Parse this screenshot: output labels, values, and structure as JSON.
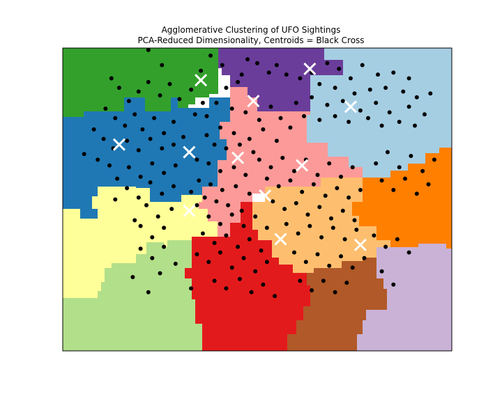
{
  "chart_data": {
    "type": "scatter",
    "title": "Agglomerative Clustering of UFO Sightings",
    "subtitle": "PCA-Reduced Dimensionality, Centroids = Black Cross",
    "xlabel": "",
    "ylabel": "",
    "axis_ticks": "none",
    "xlim": [
      0,
      10
    ],
    "ylim": [
      0,
      8
    ],
    "grid": false,
    "legend": "none",
    "region_colors": {
      "green": "#33a02c",
      "purple": "#6a3d9a",
      "light_blue": "#a6cee3",
      "blue": "#1f78b4",
      "pink": "#fb9a99",
      "orange": "#ff7f00",
      "yellow": "#ffff99",
      "light_orange": "#fdbf6f",
      "light_green": "#b2df8a",
      "red": "#e31a1c",
      "brown": "#b15928",
      "lavender": "#cab2d6"
    },
    "point_color": "#000000",
    "centroid_color": "#ffffff",
    "centroids": [
      {
        "x": 3.55,
        "y": 7.15
      },
      {
        "x": 6.35,
        "y": 7.45
      },
      {
        "x": 4.9,
        "y": 6.6
      },
      {
        "x": 7.4,
        "y": 6.45
      },
      {
        "x": 1.45,
        "y": 5.45
      },
      {
        "x": 3.25,
        "y": 5.25
      },
      {
        "x": 4.5,
        "y": 5.1
      },
      {
        "x": 6.15,
        "y": 4.9
      },
      {
        "x": 5.2,
        "y": 4.1
      },
      {
        "x": 3.25,
        "y": 3.7
      },
      {
        "x": 5.6,
        "y": 2.95
      },
      {
        "x": 7.65,
        "y": 2.8
      }
    ],
    "points": [
      [
        2.2,
        7.95
      ],
      [
        2.55,
        7.55
      ],
      [
        3.55,
        7.4
      ],
      [
        3.8,
        7.8
      ],
      [
        4.1,
        7.55
      ],
      [
        4.6,
        7.3
      ],
      [
        4.75,
        7.7
      ],
      [
        5.0,
        7.6
      ],
      [
        5.3,
        7.35
      ],
      [
        5.5,
        7.55
      ],
      [
        5.75,
        7.3
      ],
      [
        6.1,
        7.2
      ],
      [
        6.4,
        7.35
      ],
      [
        6.8,
        7.6
      ],
      [
        7.1,
        7.45
      ],
      [
        7.4,
        7.2
      ],
      [
        7.7,
        7.55
      ],
      [
        8.1,
        7.3
      ],
      [
        8.5,
        7.35
      ],
      [
        8.9,
        7.2
      ],
      [
        6.6,
        7.05
      ],
      [
        7.0,
        6.95
      ],
      [
        7.5,
        6.8
      ],
      [
        7.9,
        6.9
      ],
      [
        8.3,
        6.95
      ],
      [
        8.75,
        6.85
      ],
      [
        9.1,
        6.7
      ],
      [
        9.45,
        6.8
      ],
      [
        6.0,
        6.55
      ],
      [
        6.4,
        6.7
      ],
      [
        6.8,
        6.5
      ],
      [
        7.2,
        6.6
      ],
      [
        7.65,
        6.35
      ],
      [
        8.05,
        6.55
      ],
      [
        8.4,
        6.3
      ],
      [
        8.9,
        6.45
      ],
      [
        9.3,
        6.25
      ],
      [
        6.2,
        6.2
      ],
      [
        6.6,
        6.1
      ],
      [
        7.0,
        6.2
      ],
      [
        7.35,
        6.05
      ],
      [
        7.85,
        6.15
      ],
      [
        8.2,
        5.95
      ],
      [
        8.65,
        6.05
      ],
      [
        9.05,
        5.95
      ],
      [
        1.25,
        7.2
      ],
      [
        1.45,
        6.95
      ],
      [
        1.7,
        6.6
      ],
      [
        1.95,
        6.85
      ],
      [
        2.2,
        7.1
      ],
      [
        2.5,
        6.75
      ],
      [
        2.75,
        7.05
      ],
      [
        3.0,
        6.65
      ],
      [
        3.3,
        6.9
      ],
      [
        3.6,
        6.55
      ],
      [
        1.1,
        6.4
      ],
      [
        1.35,
        6.15
      ],
      [
        1.6,
        5.95
      ],
      [
        1.85,
        6.25
      ],
      [
        2.05,
        5.85
      ],
      [
        2.35,
        6.15
      ],
      [
        2.6,
        5.75
      ],
      [
        2.85,
        6.05
      ],
      [
        3.1,
        5.65
      ],
      [
        3.4,
        6.25
      ],
      [
        0.8,
        5.85
      ],
      [
        1.05,
        5.6
      ],
      [
        1.3,
        5.35
      ],
      [
        1.65,
        5.55
      ],
      [
        1.95,
        5.3
      ],
      [
        2.25,
        5.6
      ],
      [
        2.55,
        5.35
      ],
      [
        2.85,
        5.45
      ],
      [
        0.55,
        5.2
      ],
      [
        0.9,
        5.05
      ],
      [
        3.7,
        6.2
      ],
      [
        3.95,
        6.55
      ],
      [
        4.2,
        6.95
      ],
      [
        4.5,
        7.1
      ],
      [
        4.35,
        6.4
      ],
      [
        4.7,
        6.3
      ],
      [
        5.05,
        6.1
      ],
      [
        5.35,
        6.45
      ],
      [
        5.6,
        6.15
      ],
      [
        5.85,
        5.9
      ],
      [
        4.05,
        5.9
      ],
      [
        4.4,
        5.75
      ],
      [
        4.8,
        5.6
      ],
      [
        5.15,
        5.85
      ],
      [
        5.5,
        5.55
      ],
      [
        3.7,
        5.7
      ],
      [
        3.9,
        5.45
      ],
      [
        4.2,
        5.35
      ],
      [
        4.55,
        5.45
      ],
      [
        4.9,
        5.25
      ],
      [
        3.45,
        5.05
      ],
      [
        3.75,
        4.95
      ],
      [
        4.05,
        4.75
      ],
      [
        4.4,
        4.85
      ],
      [
        4.7,
        4.65
      ],
      [
        3.5,
        4.5
      ],
      [
        3.8,
        4.4
      ],
      [
        4.1,
        4.25
      ],
      [
        4.45,
        4.35
      ],
      [
        4.8,
        4.15
      ],
      [
        3.3,
        4.2
      ],
      [
        3.65,
        4.05
      ],
      [
        3.95,
        3.95
      ],
      [
        4.25,
        3.85
      ],
      [
        4.6,
        3.7
      ],
      [
        2.9,
        4.9
      ],
      [
        2.6,
        4.7
      ],
      [
        2.3,
        4.95
      ],
      [
        2.0,
        4.6
      ],
      [
        1.7,
        4.85
      ],
      [
        1.4,
        4.55
      ],
      [
        1.2,
        4.9
      ],
      [
        2.85,
        4.35
      ],
      [
        2.55,
        4.15
      ],
      [
        2.25,
        4.45
      ],
      [
        1.95,
        4.05
      ],
      [
        1.65,
        4.3
      ],
      [
        1.35,
        4.0
      ],
      [
        2.8,
        3.75
      ],
      [
        2.45,
        3.55
      ],
      [
        2.15,
        3.85
      ],
      [
        1.85,
        3.45
      ],
      [
        2.6,
        3.25
      ],
      [
        2.3,
        3.0
      ],
      [
        2.0,
        3.3
      ],
      [
        5.05,
        5.05
      ],
      [
        5.35,
        4.85
      ],
      [
        5.65,
        5.1
      ],
      [
        5.95,
        4.75
      ],
      [
        6.25,
        5.05
      ],
      [
        6.55,
        4.65
      ],
      [
        6.85,
        4.95
      ],
      [
        7.15,
        4.6
      ],
      [
        7.45,
        4.85
      ],
      [
        5.25,
        4.55
      ],
      [
        5.55,
        4.35
      ],
      [
        5.85,
        4.5
      ],
      [
        6.15,
        4.2
      ],
      [
        6.45,
        4.4
      ],
      [
        6.75,
        4.1
      ],
      [
        7.05,
        4.3
      ],
      [
        7.35,
        4.05
      ],
      [
        7.65,
        4.25
      ],
      [
        5.4,
        3.95
      ],
      [
        5.7,
        3.75
      ],
      [
        6.0,
        3.9
      ],
      [
        6.3,
        3.6
      ],
      [
        6.6,
        3.8
      ],
      [
        6.9,
        3.5
      ],
      [
        7.2,
        3.7
      ],
      [
        7.5,
        3.45
      ],
      [
        8.05,
        4.95
      ],
      [
        8.35,
        5.25
      ],
      [
        8.65,
        4.85
      ],
      [
        8.95,
        5.15
      ],
      [
        9.25,
        4.75
      ],
      [
        9.55,
        5.05
      ],
      [
        8.2,
        4.5
      ],
      [
        8.5,
        4.25
      ],
      [
        8.8,
        4.55
      ],
      [
        9.1,
        4.15
      ],
      [
        9.4,
        4.4
      ],
      [
        3.45,
        3.85
      ],
      [
        3.75,
        3.55
      ],
      [
        4.05,
        3.35
      ],
      [
        4.35,
        3.6
      ],
      [
        4.65,
        3.3
      ],
      [
        4.95,
        3.55
      ],
      [
        5.25,
        3.25
      ],
      [
        3.6,
        3.1
      ],
      [
        3.9,
        2.85
      ],
      [
        4.2,
        3.05
      ],
      [
        4.5,
        2.75
      ],
      [
        4.8,
        2.95
      ],
      [
        5.1,
        2.65
      ],
      [
        3.45,
        2.55
      ],
      [
        3.75,
        2.35
      ],
      [
        4.05,
        2.6
      ],
      [
        4.35,
        2.2
      ],
      [
        4.65,
        2.45
      ],
      [
        4.95,
        2.1
      ],
      [
        5.25,
        2.35
      ],
      [
        3.9,
        1.85
      ],
      [
        4.2,
        1.65
      ],
      [
        4.55,
        1.9
      ],
      [
        4.85,
        1.55
      ],
      [
        5.15,
        1.75
      ],
      [
        5.45,
        1.45
      ],
      [
        3.3,
        1.65
      ],
      [
        5.75,
        3.35
      ],
      [
        6.05,
        3.1
      ],
      [
        6.35,
        3.3
      ],
      [
        6.65,
        3.0
      ],
      [
        6.95,
        3.25
      ],
      [
        7.25,
        2.95
      ],
      [
        7.55,
        3.2
      ],
      [
        5.95,
        2.6
      ],
      [
        6.25,
        2.35
      ],
      [
        6.55,
        2.55
      ],
      [
        6.85,
        2.25
      ],
      [
        7.15,
        2.5
      ],
      [
        7.45,
        2.2
      ],
      [
        7.75,
        2.45
      ],
      [
        6.1,
        1.85
      ],
      [
        6.4,
        1.6
      ],
      [
        6.7,
        1.85
      ],
      [
        7.0,
        1.55
      ],
      [
        7.3,
        1.8
      ],
      [
        8.0,
        3.05
      ],
      [
        8.3,
        2.75
      ],
      [
        8.6,
        2.95
      ],
      [
        8.9,
        2.6
      ],
      [
        8.2,
        2.1
      ],
      [
        8.5,
        1.75
      ],
      [
        2.0,
        2.7
      ],
      [
        2.3,
        2.45
      ],
      [
        2.6,
        2.75
      ],
      [
        2.9,
        2.3
      ],
      [
        2.5,
        2.05
      ],
      [
        1.8,
        1.95
      ],
      [
        2.2,
        1.55
      ]
    ]
  }
}
